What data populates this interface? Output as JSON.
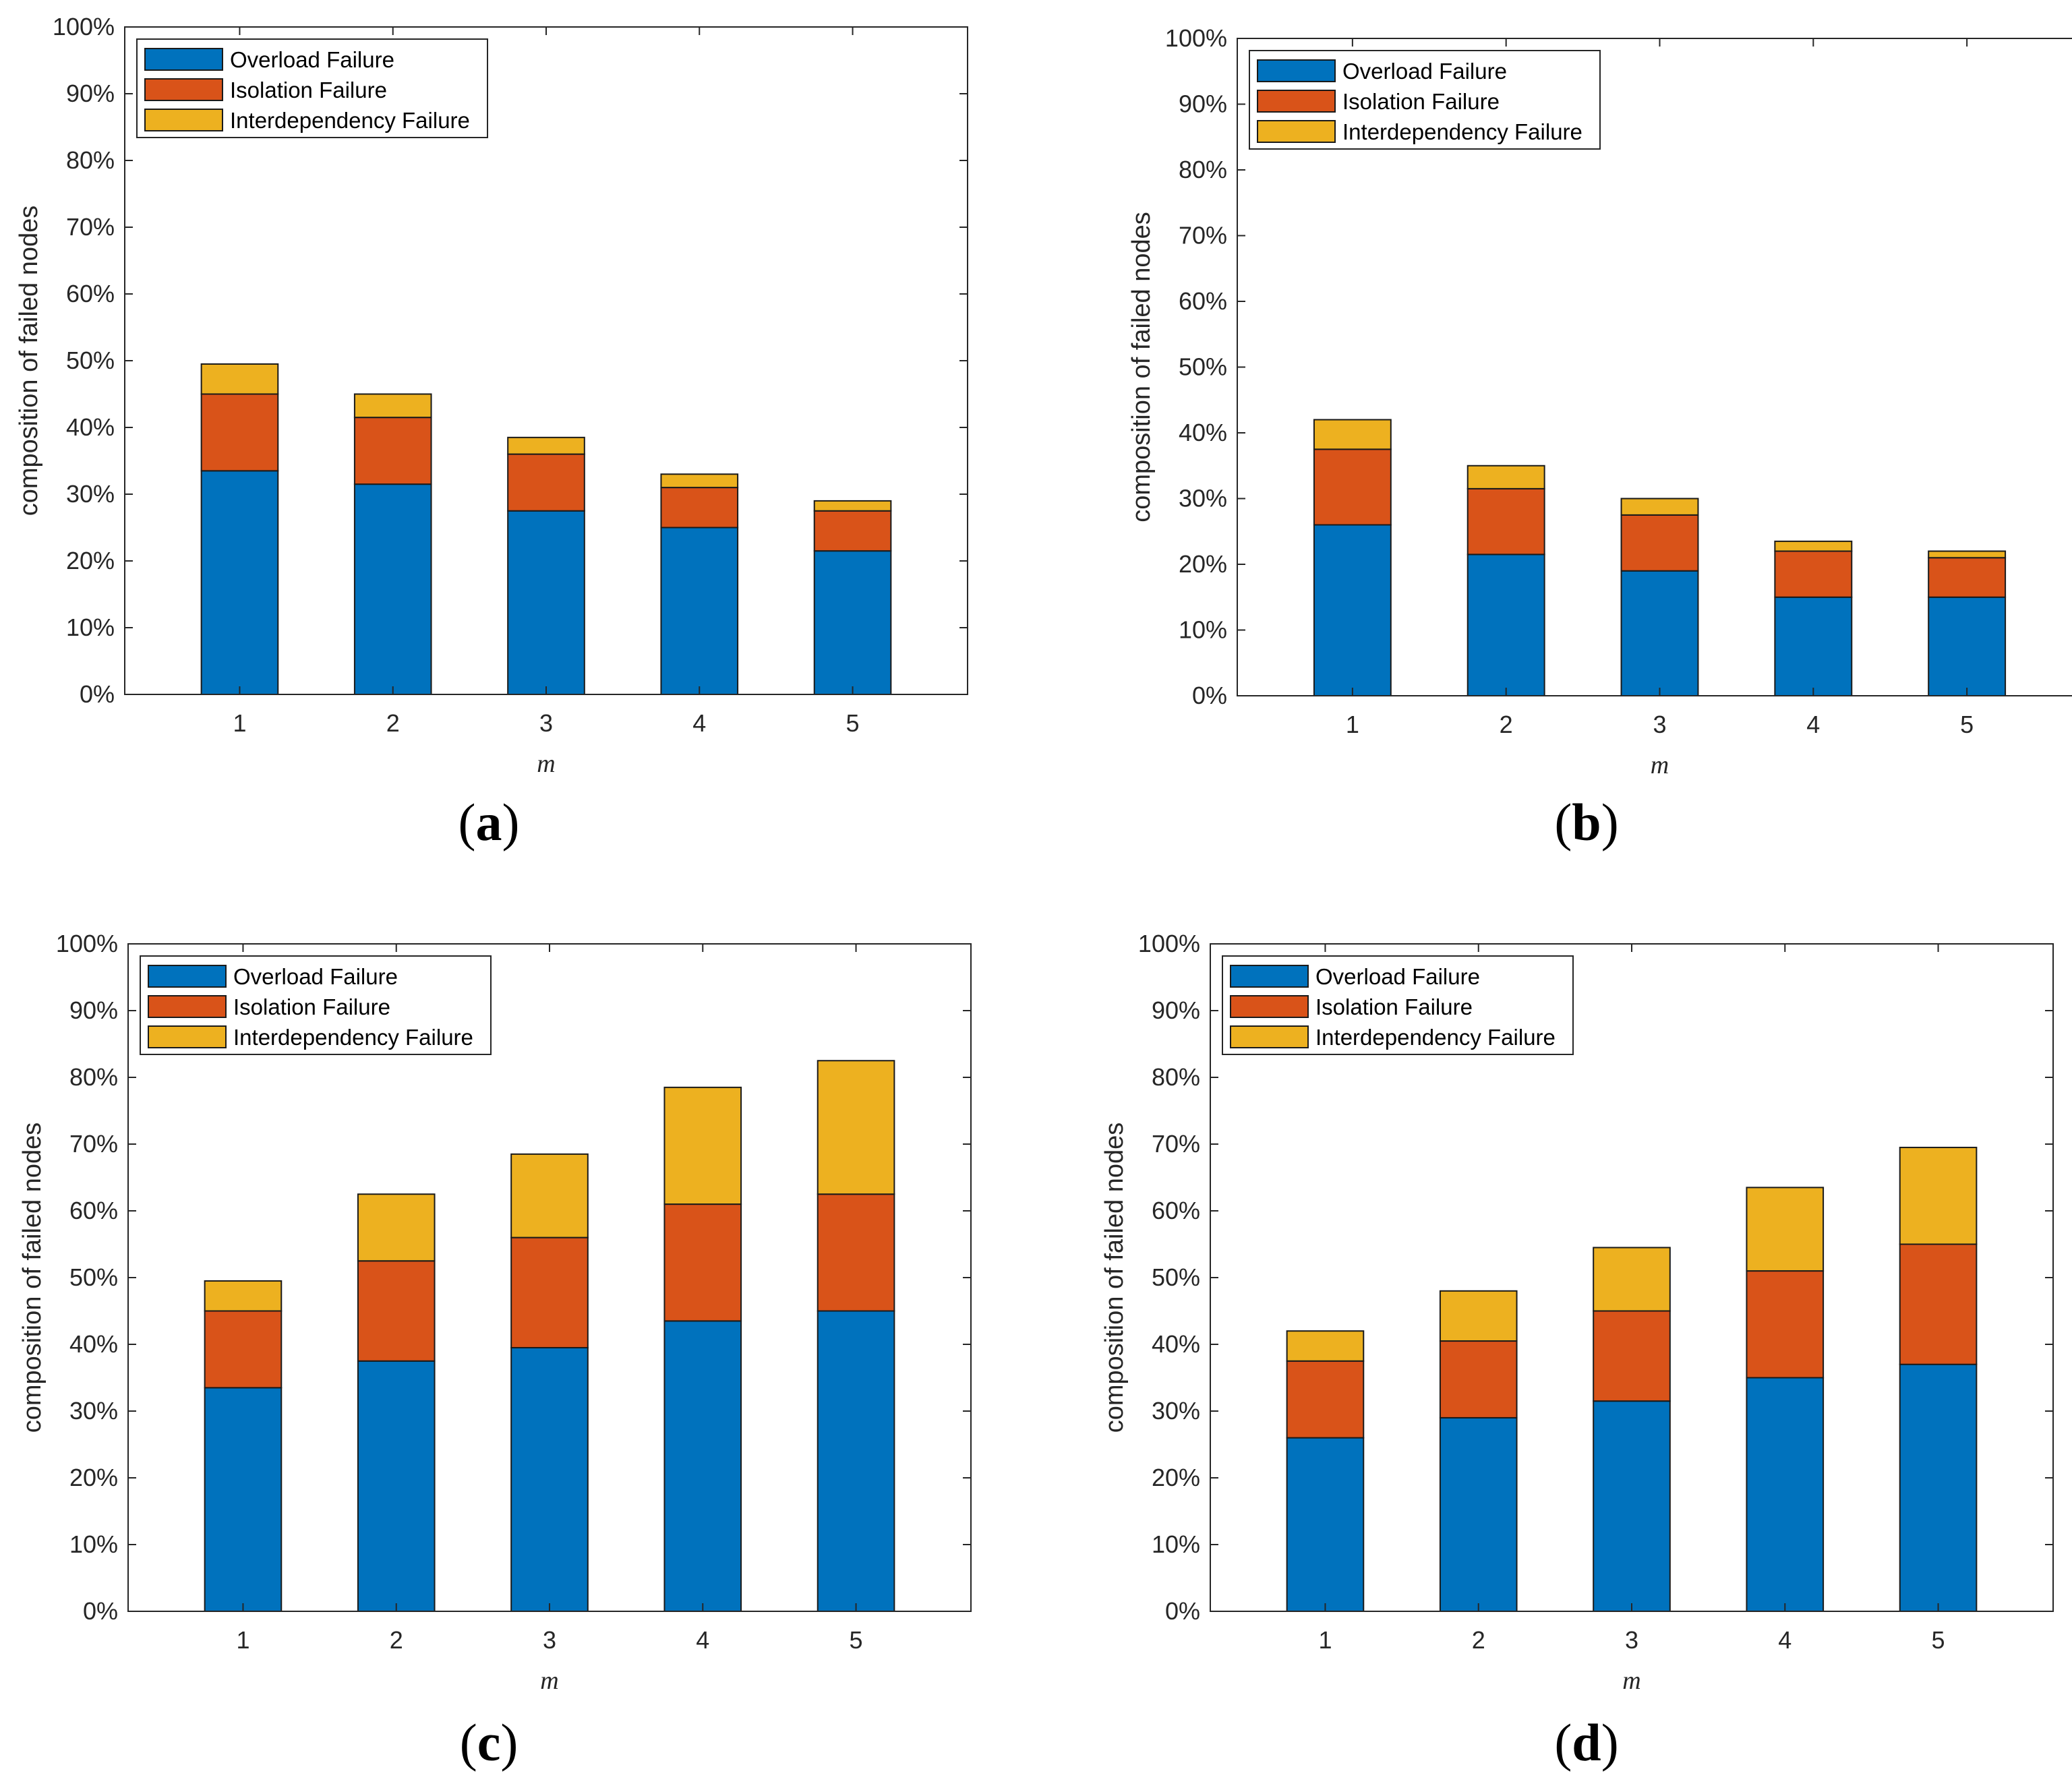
{
  "colors": {
    "overload": "#0072BD",
    "isolation": "#D95319",
    "interdependency": "#EDB120",
    "axis": "#262626",
    "background": "#ffffff"
  },
  "chart_data": [
    {
      "panel_label": "a",
      "type": "bar",
      "stacked": true,
      "categories": [
        "1",
        "2",
        "3",
        "4",
        "5"
      ],
      "series": [
        {
          "name": "Overload Failure",
          "values": [
            33.5,
            31.5,
            27.5,
            25.0,
            21.5
          ]
        },
        {
          "name": "Isolation Failure",
          "values": [
            11.5,
            10.0,
            8.5,
            6.0,
            6.0
          ]
        },
        {
          "name": "Interdependency Failure",
          "values": [
            4.5,
            3.5,
            2.5,
            2.0,
            1.5
          ]
        }
      ],
      "xlabel": "m",
      "ylabel": "composition of failed nodes",
      "ylim": [
        0,
        100
      ],
      "yticks": [
        "0%",
        "10%",
        "20%",
        "30%",
        "40%",
        "50%",
        "60%",
        "70%",
        "80%",
        "90%",
        "100%"
      ],
      "grid": false,
      "legend_position": "top-left"
    },
    {
      "panel_label": "b",
      "type": "bar",
      "stacked": true,
      "categories": [
        "1",
        "2",
        "3",
        "4",
        "5"
      ],
      "series": [
        {
          "name": "Overload Failure",
          "values": [
            26.0,
            21.5,
            19.0,
            15.0,
            15.0
          ]
        },
        {
          "name": "Isolation Failure",
          "values": [
            11.5,
            10.0,
            8.5,
            7.0,
            6.0
          ]
        },
        {
          "name": "Interdependency Failure",
          "values": [
            4.5,
            3.5,
            2.5,
            1.5,
            1.0
          ]
        }
      ],
      "xlabel": "m",
      "ylabel": "composition of failed nodes",
      "ylim": [
        0,
        100
      ],
      "yticks": [
        "0%",
        "10%",
        "20%",
        "30%",
        "40%",
        "50%",
        "60%",
        "70%",
        "80%",
        "90%",
        "100%"
      ],
      "grid": false,
      "legend_position": "top-left"
    },
    {
      "panel_label": "c",
      "type": "bar",
      "stacked": true,
      "categories": [
        "1",
        "2",
        "3",
        "4",
        "5"
      ],
      "series": [
        {
          "name": "Overload Failure",
          "values": [
            33.5,
            37.5,
            39.5,
            43.5,
            45.0
          ]
        },
        {
          "name": "Isolation Failure",
          "values": [
            11.5,
            15.0,
            16.5,
            17.5,
            17.5
          ]
        },
        {
          "name": "Interdependency Failure",
          "values": [
            4.5,
            10.0,
            12.5,
            17.5,
            20.0
          ]
        }
      ],
      "xlabel": "m",
      "ylabel": "composition of failed nodes",
      "ylim": [
        0,
        100
      ],
      "yticks": [
        "0%",
        "10%",
        "20%",
        "30%",
        "40%",
        "50%",
        "60%",
        "70%",
        "80%",
        "90%",
        "100%"
      ],
      "grid": false,
      "legend_position": "top-left"
    },
    {
      "panel_label": "d",
      "type": "bar",
      "stacked": true,
      "categories": [
        "1",
        "2",
        "3",
        "4",
        "5"
      ],
      "series": [
        {
          "name": "Overload Failure",
          "values": [
            26.0,
            29.0,
            31.5,
            35.0,
            37.0
          ]
        },
        {
          "name": "Isolation Failure",
          "values": [
            11.5,
            11.5,
            13.5,
            16.0,
            18.0
          ]
        },
        {
          "name": "Interdependency Failure",
          "values": [
            4.5,
            7.5,
            9.5,
            12.5,
            14.5
          ]
        }
      ],
      "xlabel": "m",
      "ylabel": "composition of failed nodes",
      "ylim": [
        0,
        100
      ],
      "yticks": [
        "0%",
        "10%",
        "20%",
        "30%",
        "40%",
        "50%",
        "60%",
        "70%",
        "80%",
        "90%",
        "100%"
      ],
      "grid": false,
      "legend_position": "top-left"
    }
  ]
}
